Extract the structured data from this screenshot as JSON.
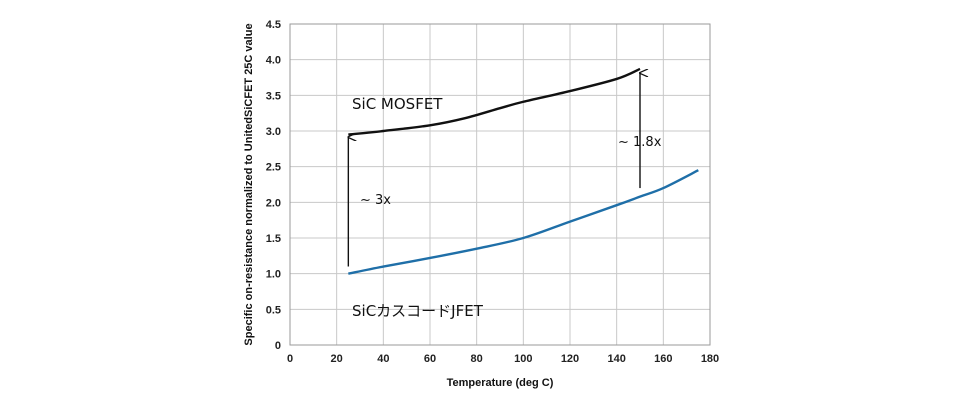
{
  "chart_data": {
    "type": "line",
    "xlabel": "Temperature (deg C)",
    "ylabel": "Specific on-resistance normalized to UnitedSiCFET 25C value",
    "xlim": [
      0,
      180
    ],
    "ylim": [
      0,
      4.5
    ],
    "xticks": [
      0,
      20,
      40,
      60,
      80,
      100,
      120,
      140,
      160,
      180
    ],
    "yticks": [
      0,
      0.5,
      1.0,
      1.5,
      2.0,
      2.5,
      3.0,
      3.5,
      4.0,
      4.5
    ],
    "ytick_labels": [
      "0",
      "0.5",
      "1.0",
      "1.5",
      "2.0",
      "2.5",
      "3.0",
      "3.5",
      "4.0",
      "4.5"
    ],
    "grid": true,
    "series": [
      {
        "name": "SiC MOSFET",
        "color": "#111111",
        "x": [
          25,
          40,
          60,
          75,
          90,
          100,
          120,
          140,
          150
        ],
        "y": [
          2.95,
          3.0,
          3.08,
          3.18,
          3.32,
          3.41,
          3.56,
          3.73,
          3.87
        ]
      },
      {
        "name": "SiCカスコードJFET",
        "color": "#1f6fa8",
        "x": [
          25,
          40,
          60,
          80,
          100,
          120,
          140,
          150,
          160,
          175
        ],
        "y": [
          1.0,
          1.1,
          1.22,
          1.35,
          1.5,
          1.73,
          1.96,
          2.08,
          2.2,
          2.45
        ]
      }
    ],
    "annotations": [
      {
        "text": "~ 3x",
        "x": 25,
        "y_from": 1.1,
        "y_to": 2.97
      },
      {
        "text": "~ 1.8x",
        "x": 150,
        "y_from": 2.2,
        "y_to": 3.87
      }
    ]
  }
}
